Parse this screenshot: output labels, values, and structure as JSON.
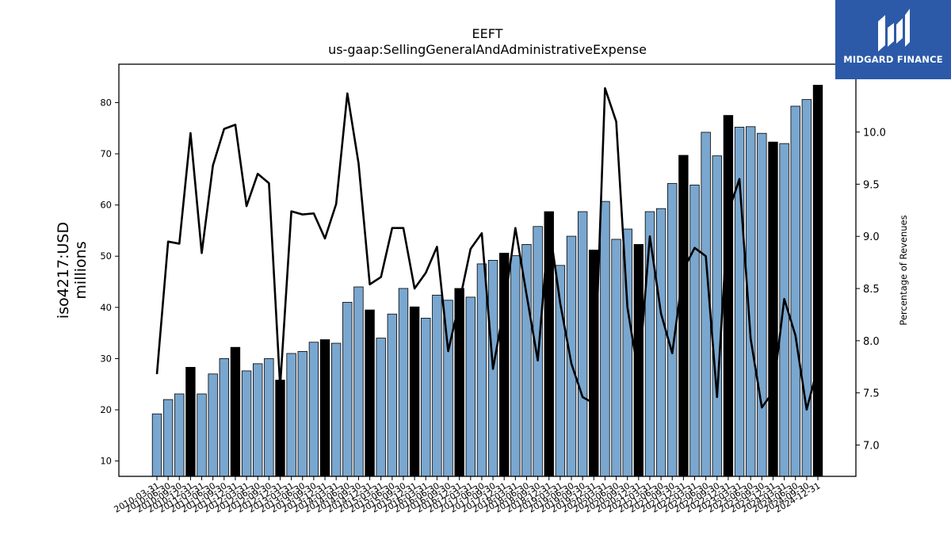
{
  "chart_data": {
    "type": "bar",
    "title": "EEFT",
    "subtitle": "us-gaap:SellingGeneralAndAdministrativeExpense",
    "ylabel": "iso4217:USD millions",
    "ylabel_lines": [
      "iso4217:USD",
      "millions"
    ],
    "y2label": "Percentage of Revenues",
    "ylim": [
      7,
      87.5
    ],
    "y2lim": [
      6.7,
      10.65
    ],
    "y_ticks": [
      10,
      20,
      30,
      40,
      50,
      60,
      70,
      80
    ],
    "y2_ticks": [
      "7.0",
      "7.5",
      "8.0",
      "8.5",
      "9.0",
      "9.5",
      "10.0"
    ],
    "categories": [
      "2010-03-31",
      "2010-06-30",
      "2010-09-30",
      "2010-12-31",
      "2011-03-31",
      "2011-06-30",
      "2011-09-30",
      "2011-12-31",
      "2012-03-31",
      "2012-06-30",
      "2012-09-30",
      "2012-12-31",
      "2013-03-31",
      "2013-06-30",
      "2013-09-30",
      "2013-12-31",
      "2014-03-31",
      "2014-06-30",
      "2014-09-30",
      "2014-12-31",
      "2015-03-31",
      "2015-06-30",
      "2015-09-30",
      "2015-12-31",
      "2016-03-31",
      "2016-06-30",
      "2016-09-30",
      "2016-12-31",
      "2017-03-31",
      "2017-06-30",
      "2017-09-30",
      "2017-12-31",
      "2018-03-31",
      "2018-06-30",
      "2018-09-30",
      "2018-12-31",
      "2019-03-31",
      "2019-06-30",
      "2019-09-30",
      "2019-12-31",
      "2020-03-31",
      "2020-06-30",
      "2020-09-30",
      "2020-12-31",
      "2021-03-31",
      "2021-06-30",
      "2021-09-30",
      "2021-12-31",
      "2022-03-31",
      "2022-06-30",
      "2022-09-30",
      "2022-12-31",
      "2023-03-31",
      "2023-06-30",
      "2023-09-30",
      "2023-12-31",
      "2024-03-31",
      "2024-06-30",
      "2024-09-30",
      "2024-12-31"
    ],
    "series": [
      {
        "kind": "bar",
        "values": [
          19.2,
          22.0,
          23.1,
          28.3,
          23.1,
          27.0,
          30.0,
          32.2,
          27.6,
          29.0,
          30.0,
          25.8,
          31.0,
          31.4,
          33.2,
          33.7,
          33.0,
          41.0,
          44.0,
          39.5,
          34.0,
          38.7,
          43.7,
          40.1,
          37.9,
          42.4,
          41.4,
          43.7,
          42.0,
          48.5,
          49.2,
          50.6,
          50.1,
          52.3,
          55.8,
          58.7,
          48.2,
          53.9,
          58.7,
          51.2,
          60.7,
          53.3,
          55.3,
          52.3,
          58.7,
          59.3,
          64.2,
          69.7,
          63.9,
          74.2,
          69.6,
          77.5,
          75.2,
          75.3,
          74.0,
          72.3,
          72.0,
          79.3,
          80.6,
          83.4
        ],
        "color": "#7aa7cf",
        "highlight_color": "#000000",
        "highlight_indices": [
          3,
          7,
          11,
          15,
          19,
          23,
          27,
          31,
          35,
          39,
          43,
          47,
          51,
          55,
          59
        ]
      },
      {
        "kind": "line",
        "axis": "right",
        "color": "#000000",
        "values": [
          7.68,
          8.95,
          8.93,
          9.99,
          8.84,
          9.68,
          10.03,
          10.07,
          9.29,
          9.6,
          9.51,
          7.56,
          9.24,
          9.21,
          9.22,
          8.98,
          9.31,
          10.37,
          9.7,
          8.54,
          8.61,
          9.08,
          9.08,
          8.5,
          8.65,
          8.9,
          7.9,
          8.37,
          8.88,
          9.03,
          7.73,
          8.33,
          9.08,
          8.44,
          7.81,
          9.12,
          8.36,
          7.78,
          7.46,
          7.4,
          10.42,
          10.1,
          8.32,
          7.66,
          9.0,
          8.26,
          7.88,
          8.68,
          8.89,
          8.81,
          7.46,
          9.23,
          9.55,
          8.02,
          7.36,
          7.51,
          8.4,
          8.05,
          7.34,
          7.75
        ]
      }
    ]
  },
  "logo": {
    "text": "MIDGARD FINANCE"
  }
}
